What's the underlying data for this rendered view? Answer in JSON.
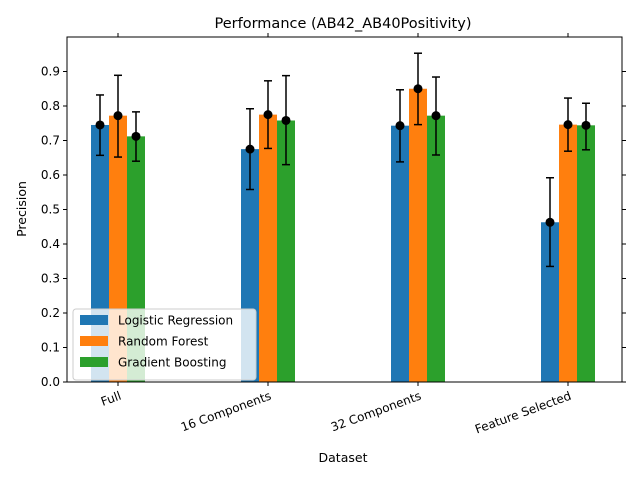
{
  "chart_data": {
    "type": "bar",
    "title": "Performance (AB42_AB40Positivity)",
    "xlabel": "Dataset",
    "ylabel": "Precision",
    "ylim": [
      0,
      1.0
    ],
    "yticks": [
      "0.0",
      "0.1",
      "0.2",
      "0.3",
      "0.4",
      "0.5",
      "0.6",
      "0.7",
      "0.8",
      "0.9"
    ],
    "categories": [
      "Full",
      "16 Components",
      "32 Components",
      "Feature Selected"
    ],
    "series": [
      {
        "name": "Logistic Regression",
        "color": "#1f77b4",
        "values": [
          0.745,
          0.675,
          0.743,
          0.463
        ],
        "error_low": [
          0.657,
          0.558,
          0.638,
          0.335
        ],
        "error_high": [
          0.832,
          0.792,
          0.847,
          0.592
        ]
      },
      {
        "name": "Random Forest",
        "color": "#ff7f0e",
        "values": [
          0.772,
          0.775,
          0.85,
          0.746
        ],
        "error_low": [
          0.652,
          0.677,
          0.746,
          0.669
        ],
        "error_high": [
          0.889,
          0.873,
          0.953,
          0.823
        ]
      },
      {
        "name": "Gradient Boosting",
        "color": "#2ca02c",
        "values": [
          0.712,
          0.758,
          0.772,
          0.744
        ],
        "error_low": [
          0.64,
          0.63,
          0.658,
          0.673
        ],
        "error_high": [
          0.783,
          0.888,
          0.884,
          0.808
        ]
      }
    ],
    "legend": "lower-left",
    "grid": false
  }
}
